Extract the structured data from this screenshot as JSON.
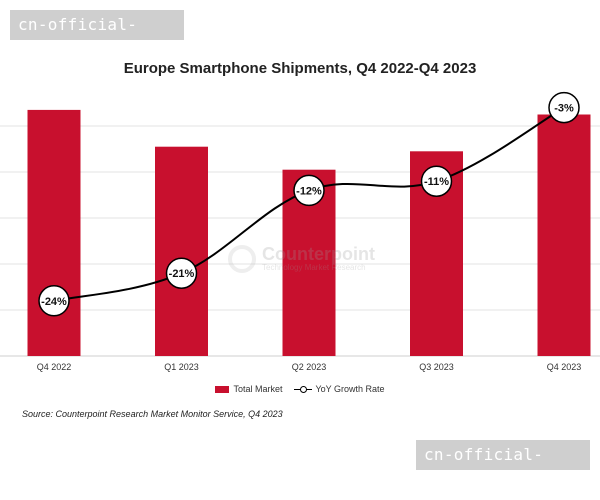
{
  "watermark": {
    "top_text": "cn-official-ufc.com",
    "bottom_text": "cn-official-ufc.com"
  },
  "logo_watermark": {
    "name": "Counterpoint",
    "subtitle": "Technology Market Research"
  },
  "chart_data": {
    "type": "bar",
    "title": "Europe Smartphone Shipments, Q4 2022-Q4 2023",
    "categories": [
      "Q4 2022",
      "Q1 2023",
      "Q2 2023",
      "Q3 2023",
      "Q4 2023"
    ],
    "series": [
      {
        "name": "Total Market",
        "kind": "bar",
        "values": [
          53.5,
          45.5,
          40.5,
          44.5,
          52.5
        ]
      },
      {
        "name": "YoY Growth Rate",
        "kind": "line",
        "values": [
          -24,
          -21,
          -12,
          -11,
          -3
        ]
      }
    ],
    "data_labels": [
      "-24%",
      "-21%",
      "-12%",
      "-11%",
      "-3%"
    ],
    "bar_range": [
      0,
      60
    ],
    "line_range": [
      -30,
      0
    ],
    "bar_gridlines": [
      0,
      10,
      20,
      30,
      40,
      50
    ],
    "colors": {
      "bar": "#c8102e",
      "line": "#000000",
      "grid": "#e3e3e3"
    },
    "legend": [
      "Total Market",
      "YoY Growth Rate"
    ],
    "source": "Source: Counterpoint Research Market Monitor Service, Q4 2023"
  }
}
